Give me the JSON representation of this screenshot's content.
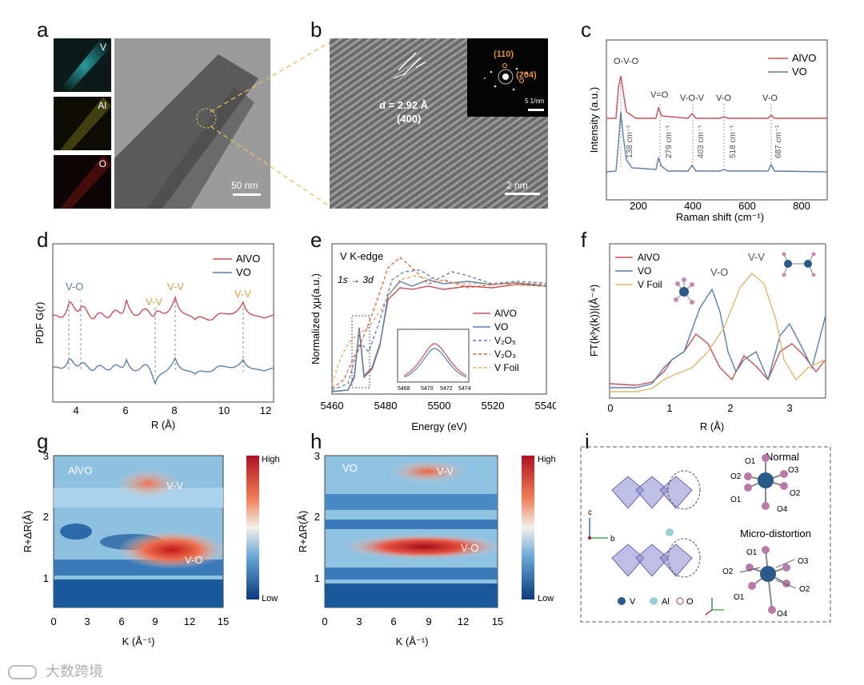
{
  "panels": {
    "a": {
      "label": "a",
      "maps": [
        "V",
        "Al",
        "O"
      ],
      "scale": "50 nm",
      "colors": {
        "V": "#2aa8a8",
        "Al": "#9a9a2a",
        "O": "#8a1a1a"
      }
    },
    "b": {
      "label": "b",
      "d_text": "d = 2.92 Å",
      "plane": "(400)",
      "saed_spots": [
        "(110)",
        "(204)"
      ],
      "saed_scale": "5 1/nm",
      "scale": "2 nm"
    },
    "c": {
      "label": "c",
      "xlabel": "Raman shift (cm⁻¹)",
      "ylabel": "Intensity (a.u.)",
      "legend": [
        "AlVO",
        "VO"
      ],
      "mode_labels": [
        "O-V-O",
        "V=O",
        "V-O-V",
        "V-O",
        "V-O"
      ],
      "peaks": [
        "138 cm⁻¹",
        "279 cm⁻¹",
        "403 cm⁻¹",
        "518 cm⁻¹",
        "687 cm⁻¹"
      ],
      "xticks": [
        "200",
        "400",
        "600",
        "800"
      ]
    },
    "d": {
      "label": "d",
      "xlabel": "R (Å)",
      "ylabel": "PDF G(r)",
      "legend": [
        "AlVO",
        "VO"
      ],
      "annot": [
        "V-O",
        "V-V",
        "V-V",
        "V-V"
      ],
      "xticks": [
        "4",
        "6",
        "8",
        "10",
        "12"
      ]
    },
    "e": {
      "label": "e",
      "title": "V K-edge",
      "xlabel": "Energy (eV)",
      "ylabel": "Normalized χμ(a.u.)",
      "arrow_text": "1s → 3d",
      "legend": [
        "AlVO",
        "VO",
        "V₂O₅",
        "V₂O₃",
        "V Foil"
      ],
      "xticks": [
        "5460",
        "5480",
        "5500",
        "5520",
        "5540"
      ],
      "inset_xticks": [
        "5468",
        "5470",
        "5472",
        "5474"
      ]
    },
    "f": {
      "label": "f",
      "xlabel": "R (Å)",
      "ylabel": "FT(k³χ(k))|(Å⁻⁴)",
      "legend": [
        "AlVO",
        "VO",
        "V Foil"
      ],
      "annot": [
        "V-O",
        "V-V"
      ],
      "xticks": [
        "0",
        "1",
        "2",
        "3"
      ]
    },
    "g": {
      "label": "g",
      "name": "AlVO",
      "xlabel": "K (Å⁻¹)",
      "ylabel": "R+ΔR(Å)",
      "annot": [
        "V-V",
        "V-O"
      ],
      "xticks": [
        "0",
        "3",
        "6",
        "9",
        "12",
        "15"
      ],
      "yticks": [
        "1",
        "2",
        "3"
      ],
      "cbar": [
        "High",
        "Low"
      ]
    },
    "h": {
      "label": "h",
      "name": "VO",
      "xlabel": "K (Å⁻¹)",
      "ylabel": "R+ΔR(Å)",
      "annot": [
        "V-V",
        "V-O"
      ],
      "xticks": [
        "0",
        "3",
        "6",
        "9",
        "12",
        "15"
      ],
      "yticks": [
        "1",
        "2",
        "3"
      ],
      "cbar": [
        "High",
        "Low"
      ]
    },
    "i": {
      "label": "i",
      "normal": "Normal",
      "distort": "Micro-distortion",
      "legend": [
        "V",
        "Al",
        "O"
      ],
      "oxygens_top": [
        "O1",
        "O2",
        "O3",
        "O2",
        "O1",
        "O4"
      ],
      "oxygens_bottom": [
        "O1",
        "O3",
        "O2",
        "O2",
        "O1",
        "O4"
      ],
      "axes": [
        "c",
        "b",
        "a"
      ]
    }
  },
  "watermark": "大数跨境",
  "colors": {
    "alvo": "#c8505a",
    "vo": "#5a7fa8",
    "v2o5": "#5a7fa8",
    "v2o3": "#e0603a",
    "vfoil": "#e0a860"
  }
}
